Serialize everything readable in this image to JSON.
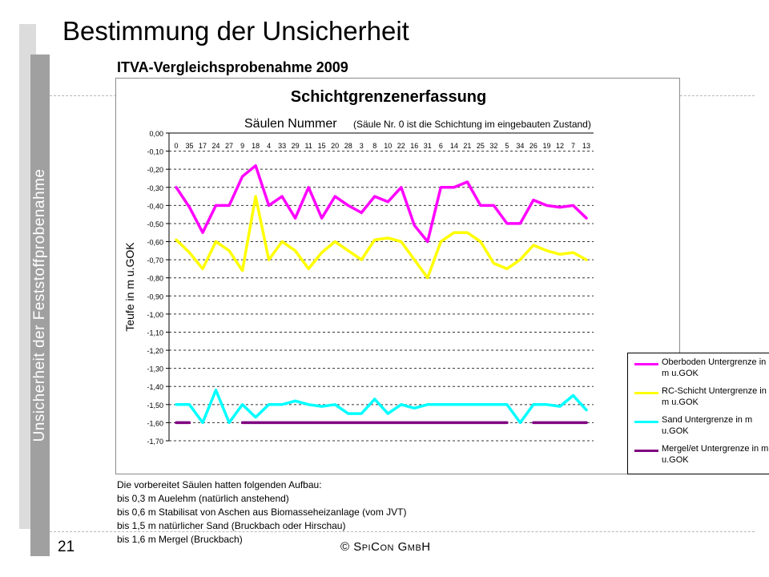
{
  "slide": {
    "title": "Bestimmung der Unsicherheit",
    "side_label": "Unsicherheit der Feststoffprobenahme",
    "subtitle": "ITVA-Vergleichsprobenahme 2009",
    "page_number": "21",
    "copyright": "© SpiCon GmbH"
  },
  "notes": [
    "Die vorbereitet Säulen hatten folgenden Aufbau:",
    "bis 0,3 m Auelehm (natürlich anstehend)",
    "bis 0,6 m Stabilisat von Aschen aus Biomasseheizanlage (vom JVT)",
    "bis 1,5 m natürlicher Sand (Bruckbach oder Hirschau)",
    "bis 1,6 m Mergel (Bruckbach)"
  ],
  "chart_data": {
    "type": "line",
    "title": "Schichtgrenzenerfassung",
    "subtitle_main": "Säulen Nummer",
    "subtitle_note": "(Säule Nr. 0 ist die Schichtung im eingebauten Zustand)",
    "xlabel": "Säulen Nummer",
    "ylabel": "Teufe in m u.GOK",
    "ylim": [
      -1.7,
      0.0
    ],
    "y_ticks": [
      "0,00",
      "-0,10",
      "-0,20",
      "-0,30",
      "-0,40",
      "-0,50",
      "-0,60",
      "-0,70",
      "-0,80",
      "-0,90",
      "-1,00",
      "-1,10",
      "-1,20",
      "-1,30",
      "-1,40",
      "-1,50",
      "-1,60",
      "-1,70"
    ],
    "grid": true,
    "legend_position": "bottom-right",
    "categories": [
      "0",
      "35",
      "17",
      "24",
      "27",
      "9",
      "18",
      "4",
      "33",
      "29",
      "11",
      "15",
      "20",
      "28",
      "3",
      "8",
      "10",
      "22",
      "16",
      "31",
      "6",
      "14",
      "21",
      "25",
      "32",
      "5",
      "34",
      "26",
      "19",
      "12",
      "7",
      "13"
    ],
    "series": [
      {
        "name": "Oberboden Untergrenze in m u.GOK",
        "color": "#ff00ff",
        "values": [
          -0.3,
          -0.41,
          -0.55,
          -0.4,
          -0.4,
          -0.24,
          -0.18,
          -0.4,
          -0.35,
          -0.47,
          -0.3,
          -0.47,
          -0.35,
          -0.4,
          -0.44,
          -0.35,
          -0.38,
          -0.3,
          -0.51,
          -0.6,
          -0.3,
          -0.3,
          -0.27,
          -0.4,
          -0.4,
          -0.5,
          -0.5,
          -0.37,
          -0.4,
          -0.41,
          -0.4,
          -0.47
        ]
      },
      {
        "name": "RC-Schicht Untergrenze in m u.GOK",
        "color": "#ffff00",
        "values": [
          -0.59,
          -0.66,
          -0.75,
          -0.6,
          -0.65,
          -0.76,
          -0.35,
          -0.7,
          -0.6,
          -0.65,
          -0.75,
          -0.66,
          -0.6,
          -0.65,
          -0.7,
          -0.59,
          -0.58,
          -0.6,
          -0.7,
          -0.8,
          -0.6,
          -0.55,
          -0.55,
          -0.6,
          -0.72,
          -0.75,
          -0.7,
          -0.62,
          -0.65,
          -0.67,
          -0.66,
          -0.7
        ]
      },
      {
        "name": "Sand Untergrenze in m u.GOK",
        "color": "#00ffff",
        "values": [
          -1.5,
          -1.5,
          -1.6,
          -1.42,
          -1.6,
          -1.5,
          -1.57,
          -1.5,
          -1.5,
          -1.48,
          -1.5,
          -1.51,
          -1.5,
          -1.55,
          -1.55,
          -1.47,
          -1.55,
          -1.5,
          -1.52,
          -1.5,
          -1.5,
          -1.5,
          -1.5,
          -1.5,
          -1.5,
          -1.5,
          -1.6,
          -1.5,
          -1.5,
          -1.51,
          -1.45,
          -1.53
        ]
      },
      {
        "name": "Mergel/et Untergrenze in m u.GOK",
        "color": "#800080",
        "values": [
          -1.6,
          -1.6,
          null,
          null,
          null,
          -1.6,
          -1.6,
          -1.6,
          -1.6,
          -1.6,
          -1.6,
          -1.6,
          -1.6,
          -1.6,
          -1.6,
          -1.6,
          -1.6,
          -1.6,
          -1.6,
          -1.6,
          -1.6,
          -1.6,
          -1.6,
          -1.6,
          -1.6,
          -1.6,
          null,
          -1.6,
          -1.6,
          -1.6,
          -1.6,
          -1.6
        ]
      }
    ],
    "legend_lines": [
      [
        "Oberboden Untergrenze in",
        "m u.GOK"
      ],
      [
        "RC-Schicht Untergrenze in",
        "m u.GOK"
      ],
      [
        "Sand Untergrenze in m",
        "u.GOK"
      ],
      [
        "Mergel/et Untergrenze in m",
        "u.GOK"
      ]
    ]
  }
}
